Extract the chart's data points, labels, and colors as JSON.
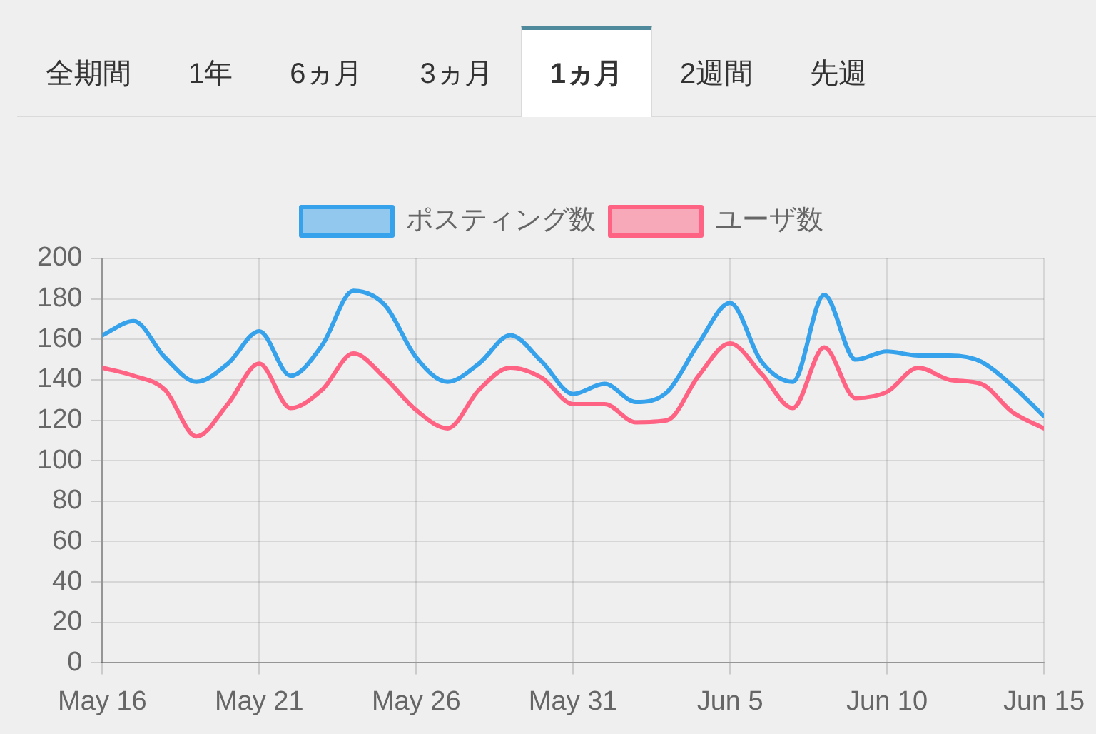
{
  "chart_data": {
    "type": "line",
    "annotations": [
      "全期間",
      "1年",
      "6ヵ月",
      "3ヵ月",
      "1ヵ月",
      "2週間",
      "先週"
    ],
    "x": [
      "--05-16",
      "--05-17",
      "--05-18",
      "--05-19",
      "--05-20",
      "--05-21",
      "--05-22",
      "--05-23",
      "--05-24",
      "--05-25",
      "--05-26",
      "--05-27",
      "--05-28",
      "--05-29",
      "--05-30",
      "--05-31",
      "--06-01",
      "--06-02",
      "--06-03",
      "--06-04",
      "--06-05",
      "--06-06",
      "--06-07",
      "--06-08",
      "--06-09",
      "--06-10",
      "--06-11",
      "--06-12",
      "--06-13",
      "--06-14",
      "--06-15"
    ],
    "series": [
      {
        "name": "ポスティング数",
        "color": "#36a2eb",
        "values": [
          162,
          169,
          151,
          139,
          148,
          164,
          142,
          157,
          184,
          177,
          151,
          139,
          148,
          162,
          149,
          133,
          138,
          129,
          134,
          158,
          178,
          149,
          139,
          182,
          150,
          154,
          152,
          152,
          149,
          137,
          122
        ]
      },
      {
        "name": "ユーザ数",
        "color": "#ff6384",
        "values": [
          146,
          142,
          135,
          112,
          128,
          148,
          126,
          135,
          153,
          141,
          125,
          116,
          135,
          146,
          141,
          128,
          128,
          119,
          120,
          142,
          158,
          143,
          126,
          156,
          131,
          134,
          146,
          140,
          138,
          124,
          116
        ]
      }
    ],
    "xlim": [
      "--05-16",
      "--06-15"
    ],
    "xticks": [
      {
        "value": "--05-16",
        "label": "May 16"
      },
      {
        "value": "--05-21",
        "label": "May 21"
      },
      {
        "value": "--05-26",
        "label": "May 26"
      },
      {
        "value": "--05-31",
        "label": "May 31"
      },
      {
        "value": "--06-05",
        "label": "Jun 5"
      },
      {
        "value": "--06-10",
        "label": "Jun 10"
      },
      {
        "value": "--06-15",
        "label": "Jun 15"
      }
    ],
    "ylim": [
      0,
      200
    ],
    "yticks": [
      0,
      20,
      40,
      60,
      80,
      100,
      120,
      140,
      160,
      180,
      200
    ],
    "grid": true,
    "legend": "top",
    "marker": "none",
    "line_style": "solid"
  }
}
